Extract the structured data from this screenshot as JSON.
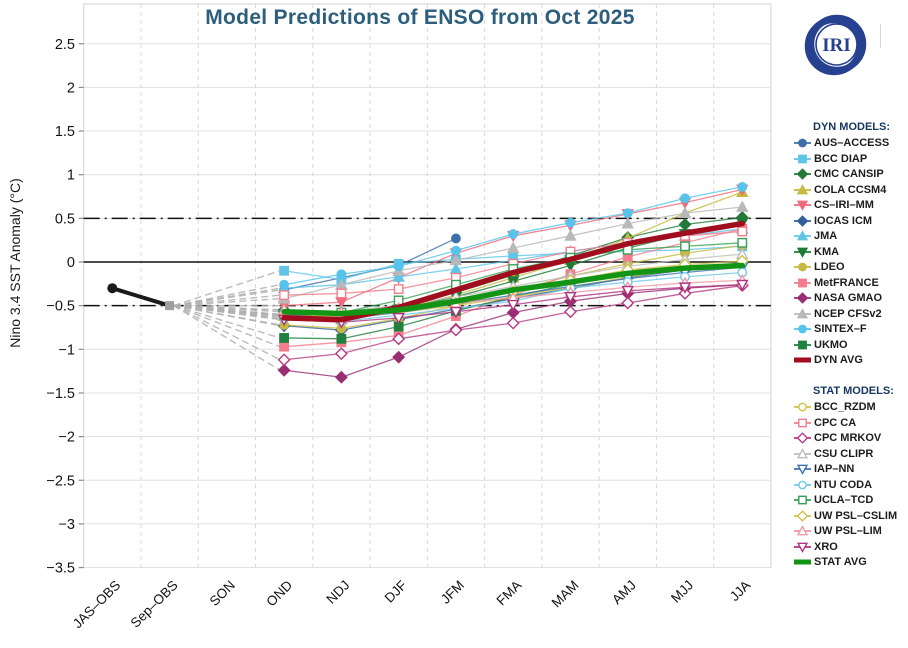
{
  "title": "Model Predictions of ENSO from Oct 2025",
  "logo": {
    "label": "IRI"
  },
  "legend": {
    "dyn_header": "DYN MODELS:",
    "stat_header": "STAT MODELS:"
  },
  "chart_data": {
    "type": "line",
    "title": "Model Predictions of ENSO from Oct 2025",
    "xlabel": "",
    "ylabel": "Nino 3.4 SST Anomaly (°C)",
    "x_categories": [
      "JAS–OBS",
      "Sep–OBS",
      "SON",
      "OND",
      "NDJ",
      "DJF",
      "JFM",
      "FMA",
      "MAM",
      "AMJ",
      "MJJ",
      "JJA"
    ],
    "ylim": [
      -3.5,
      2.5
    ],
    "ytick_labels": [
      "2.5",
      "2",
      "1.5",
      "1",
      "0.5",
      "0",
      "−0.5",
      "−1",
      "−1.5",
      "−2",
      "−2.5",
      "−3",
      "−3.5"
    ],
    "ytick_values": [
      2.5,
      2,
      1.5,
      1,
      0.5,
      0,
      -0.5,
      -1,
      -1.5,
      -2,
      -2.5,
      -3,
      -3.5
    ],
    "threshold_lines": {
      "zero": 0,
      "el_nino": 0.5,
      "la_nina": -0.5
    },
    "grid": true,
    "legend_position": "right",
    "observed": {
      "name": "Observations",
      "color": "#1a1a1a",
      "marker_color_last": "#9e9e9e",
      "points": [
        {
          "x": "JAS–OBS",
          "y": -0.3
        },
        {
          "x": "Sep–OBS",
          "y": -0.5
        }
      ]
    },
    "forecast_start_index": 3,
    "fan_color": "#b0b0b0",
    "groups": [
      {
        "id": "dyn",
        "header": "DYN MODELS:",
        "series": [
          {
            "label": "AUS–ACCESS",
            "marker": "circle",
            "filled": true,
            "color": "#3e6fa8",
            "values": [
              -0.32,
              -0.18,
              -0.04,
              0.27
            ]
          },
          {
            "label": "BCC DIAP",
            "marker": "square",
            "filled": true,
            "color": "#5ec5e9",
            "values": [
              -0.1,
              -0.2,
              -0.02,
              0.03,
              0.07,
              0.1,
              0.12,
              0.14,
              0.18
            ]
          },
          {
            "label": "CMC CANSIP",
            "marker": "diamond",
            "filled": true,
            "color": "#237a38",
            "values": [
              -0.55,
              -0.58,
              -0.5,
              -0.35,
              -0.15,
              0.07,
              0.28,
              0.43,
              0.51
            ]
          },
          {
            "label": "COLA CCSM4",
            "marker": "tri-up",
            "filled": true,
            "color": "#c6b93f",
            "values": [
              -0.62,
              -0.66,
              -0.55,
              -0.38,
              -0.18,
              0.02,
              0.27,
              0.56,
              0.8
            ]
          },
          {
            "label": "CS–IRI–MM",
            "marker": "tri-down",
            "filled": true,
            "color": "#ef6a7c",
            "values": [
              -0.5,
              -0.46,
              -0.18,
              0.1,
              0.3,
              0.42,
              0.55,
              0.68,
              0.83
            ]
          },
          {
            "label": "IOCAS ICM",
            "marker": "diamond",
            "filled": true,
            "color": "#335f9a",
            "values": [
              -0.73,
              -0.78,
              -0.66,
              -0.54,
              -0.42,
              -0.3,
              -0.18,
              -0.09,
              -0.01
            ]
          },
          {
            "label": "JMA",
            "marker": "tri-up",
            "filled": true,
            "color": "#5ec5e9",
            "values": [
              -0.3,
              -0.26,
              -0.17,
              -0.08,
              0.02,
              0.12,
              0.22,
              0.3,
              0.38
            ]
          },
          {
            "label": "KMA",
            "marker": "tri-down",
            "filled": true,
            "color": "#1d7a35",
            "values": [
              -0.62,
              -0.64,
              -0.55,
              -0.4,
              -0.22,
              -0.04,
              0.16,
              0.32,
              0.45
            ]
          },
          {
            "label": "LDEO",
            "marker": "circle",
            "filled": true,
            "color": "#c6b93f",
            "values": [
              -0.72,
              -0.76,
              -0.65,
              -0.5,
              -0.33,
              -0.16,
              -0.02,
              0.1,
              0.19
            ]
          },
          {
            "label": "MetFRANCE",
            "marker": "square",
            "filled": true,
            "color": "#f27d8c",
            "values": [
              -0.97,
              -0.92,
              -0.84,
              -0.62,
              -0.38,
              -0.14,
              0.06,
              0.22,
              0.38
            ]
          },
          {
            "label": "NASA GMAO",
            "marker": "diamond",
            "filled": true,
            "color": "#992e74",
            "values": [
              -1.24,
              -1.32,
              -1.09,
              -0.77,
              -0.58,
              -0.45,
              -0.36,
              -0.3,
              -0.26
            ]
          },
          {
            "label": "NCEP CFSv2",
            "marker": "tri-up",
            "filled": true,
            "color": "#b8b8b8",
            "values": [
              -0.42,
              -0.26,
              -0.1,
              0.02,
              0.16,
              0.3,
              0.44,
              0.56,
              0.63
            ]
          },
          {
            "label": "SINTEX–F",
            "marker": "circle",
            "filled": true,
            "color": "#56c3ea",
            "values": [
              -0.26,
              -0.14,
              -0.05,
              0.13,
              0.32,
              0.45,
              0.56,
              0.73,
              0.86
            ]
          },
          {
            "label": "UKMO",
            "marker": "square",
            "filled": true,
            "color": "#20803d",
            "values": [
              -0.87,
              -0.88,
              -0.74,
              -0.56,
              -0.4,
              -0.25,
              -0.13
            ]
          }
        ],
        "average": {
          "label": "DYN AVG",
          "color": "#a00e1d",
          "values": [
            -0.64,
            -0.66,
            -0.52,
            -0.32,
            -0.12,
            0.03,
            0.21,
            0.33,
            0.44
          ]
        }
      },
      {
        "id": "stat",
        "header": "STAT MODELS:",
        "series": [
          {
            "label": "BCC_RZDM",
            "marker": "circle",
            "filled": false,
            "color": "#d0c245",
            "values": [
              -0.6,
              -0.63,
              -0.58,
              -0.5,
              -0.4,
              -0.29,
              -0.17,
              -0.08,
              -0.01
            ]
          },
          {
            "label": "CPC CA",
            "marker": "square",
            "filled": false,
            "color": "#f27d8c",
            "values": [
              -0.38,
              -0.36,
              -0.31,
              -0.18,
              -0.02,
              0.12,
              0.22,
              0.3,
              0.35
            ]
          },
          {
            "label": "CPC MRKOV",
            "marker": "diamond",
            "filled": false,
            "color": "#b63884",
            "values": [
              -1.12,
              -1.05,
              -0.88,
              -0.78,
              -0.7,
              -0.57,
              -0.47,
              -0.36,
              -0.27
            ]
          },
          {
            "label": "CSU CLIPR",
            "marker": "tri-up",
            "filled": false,
            "color": "#bdbdbd",
            "values": [
              -0.55,
              -0.57,
              -0.5,
              -0.4,
              -0.28,
              -0.16,
              -0.05,
              0.03,
              0.09
            ]
          },
          {
            "label": "IAP–NN",
            "marker": "tri-down",
            "filled": false,
            "color": "#3c73b0",
            "values": [
              -0.6,
              -0.65,
              -0.58,
              -0.48,
              -0.38,
              -0.28,
              -0.19,
              -0.12,
              -0.06
            ]
          },
          {
            "label": "NTU CODA",
            "marker": "circle",
            "filled": false,
            "color": "#6ec9e9",
            "values": [
              -0.65,
              -0.68,
              -0.61,
              -0.53,
              -0.45,
              -0.3,
              -0.23,
              -0.17,
              -0.12
            ]
          },
          {
            "label": "UCLA–TCD",
            "marker": "square",
            "filled": false,
            "color": "#35a055",
            "values": [
              -0.6,
              -0.58,
              -0.44,
              -0.26,
              -0.08,
              0.05,
              0.14,
              0.18,
              0.22
            ]
          },
          {
            "label": "UW PSL–CSLIM",
            "marker": "diamond",
            "filled": false,
            "color": "#d0c245",
            "values": [
              -0.62,
              -0.64,
              -0.57,
              -0.47,
              -0.34,
              -0.21,
              -0.09,
              -0.03,
              0.01
            ]
          },
          {
            "label": "UW PSL–LIM",
            "marker": "tri-up",
            "filled": false,
            "color": "#f497a5",
            "values": [
              -0.55,
              -0.58,
              -0.53,
              -0.47,
              -0.41,
              -0.35,
              -0.29,
              -0.24,
              -0.21
            ]
          },
          {
            "label": "XRO",
            "marker": "tri-down",
            "filled": false,
            "color": "#b0337f",
            "values": [
              -0.66,
              -0.69,
              -0.64,
              -0.57,
              -0.49,
              -0.4,
              -0.33,
              -0.29,
              -0.26
            ]
          }
        ],
        "average": {
          "label": "STAT AVG",
          "color": "#149414",
          "values": [
            -0.57,
            -0.59,
            -0.55,
            -0.45,
            -0.32,
            -0.23,
            -0.13,
            -0.07,
            -0.04
          ]
        }
      }
    ]
  }
}
